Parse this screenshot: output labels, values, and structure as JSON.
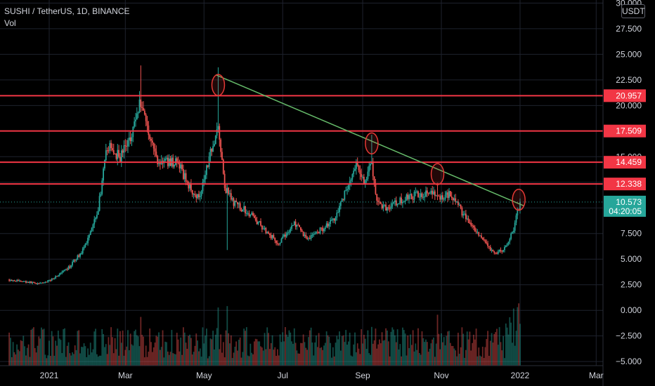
{
  "legend": {
    "symbol_line": "SUSHI / TetherUS, 1D, BINANCE",
    "indicator": "Vol"
  },
  "price_scale": {
    "currency": "USDT"
  },
  "colors": {
    "background": "#000000",
    "up": "#26a69a",
    "down": "#ef5350",
    "level_line": "#f23645",
    "trend_line": "#66bb6a",
    "marker": "#e53935",
    "last_price_bg": "#26a69a",
    "grid": "#1e222d",
    "axis_text": "#d1d4dc"
  },
  "chart_data": {
    "type": "candlestick",
    "title": "SUSHI / TetherUS, 1D, BINANCE",
    "series_name": "Vol",
    "y_axis_ticks": [
      "30.000",
      "27.500",
      "25.000",
      "22.500",
      "20.000",
      "17.500",
      "15.000",
      "12.500",
      "10.000",
      "7.500",
      "5.000",
      "2.500",
      "0.000",
      "−2.500",
      "−5.000"
    ],
    "y_axis_values": [
      30,
      27.5,
      25,
      22.5,
      20,
      17.5,
      15,
      12.5,
      10,
      7.5,
      5,
      2.5,
      0,
      -2.5,
      -5
    ],
    "ylim": [
      -5.4,
      30.3
    ],
    "x_axis_ticks": [
      {
        "label": "2021",
        "date": "2021-01-01"
      },
      {
        "label": "Mar",
        "date": "2021-03-01"
      },
      {
        "label": "May",
        "date": "2021-05-01"
      },
      {
        "label": "Jul",
        "date": "2021-07-01"
      },
      {
        "label": "Sep",
        "date": "2021-09-01"
      },
      {
        "label": "Nov",
        "date": "2021-11-01"
      },
      {
        "label": "2022",
        "date": "2022-01-01"
      },
      {
        "label": "Mar",
        "date": "2022-03-01"
      }
    ],
    "price_path": [
      [
        "2020-12-01",
        3.0
      ],
      [
        "2020-12-25",
        2.6
      ],
      [
        "2021-01-01",
        2.9
      ],
      [
        "2021-01-15",
        4.0
      ],
      [
        "2021-01-28",
        6.0
      ],
      [
        "2021-02-08",
        10.0
      ],
      [
        "2021-02-15",
        16.0
      ],
      [
        "2021-02-25",
        15.0
      ],
      [
        "2021-03-05",
        17.0
      ],
      [
        "2021-03-13",
        20.5
      ],
      [
        "2021-03-18",
        18.0
      ],
      [
        "2021-03-26",
        14.5
      ],
      [
        "2021-04-10",
        14.5
      ],
      [
        "2021-04-20",
        12.0
      ],
      [
        "2021-04-27",
        11.0
      ],
      [
        "2021-05-05",
        15.0
      ],
      [
        "2021-05-12",
        18.0
      ],
      [
        "2021-05-17",
        12.0
      ],
      [
        "2021-05-24",
        10.5
      ],
      [
        "2021-06-05",
        9.5
      ],
      [
        "2021-06-20",
        7.5
      ],
      [
        "2021-06-28",
        6.5
      ],
      [
        "2021-07-10",
        8.5
      ],
      [
        "2021-07-20",
        7.0
      ],
      [
        "2021-08-01",
        8.0
      ],
      [
        "2021-08-10",
        9.0
      ],
      [
        "2021-08-20",
        12.0
      ],
      [
        "2021-08-27",
        14.0
      ],
      [
        "2021-09-03",
        12.5
      ],
      [
        "2021-09-08",
        14.5
      ],
      [
        "2021-09-12",
        10.5
      ],
      [
        "2021-09-20",
        10.0
      ],
      [
        "2021-10-05",
        11.0
      ],
      [
        "2021-10-20",
        11.5
      ],
      [
        "2021-11-01",
        11.0
      ],
      [
        "2021-11-08",
        11.5
      ],
      [
        "2021-11-15",
        10.0
      ],
      [
        "2021-11-25",
        8.0
      ],
      [
        "2021-12-05",
        6.5
      ],
      [
        "2021-12-12",
        5.5
      ],
      [
        "2021-12-20",
        6.0
      ],
      [
        "2021-12-26",
        7.5
      ],
      [
        "2022-01-01",
        10.573
      ]
    ],
    "horizontal_levels": [
      20.957,
      17.509,
      14.459,
      12.338
    ],
    "horizontal_level_labels": [
      "20.957",
      "17.509",
      "14.459",
      "12.338"
    ],
    "trend_line": {
      "start": [
        "2021-05-10",
        23.0
      ],
      "end": [
        "2022-01-04",
        10.2
      ]
    },
    "touch_markers": [
      [
        "2021-05-12",
        22.0
      ],
      [
        "2021-09-08",
        16.3
      ],
      [
        "2021-10-29",
        13.3
      ],
      [
        "2021-12-31",
        10.8
      ]
    ],
    "last_price": "10.573",
    "last_price_value": 10.573,
    "countdown": "04:20:05"
  }
}
